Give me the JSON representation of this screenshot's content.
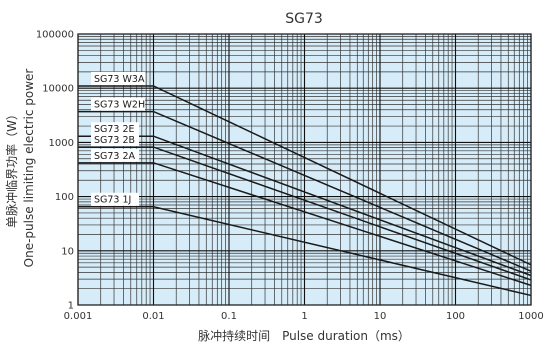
{
  "chart_data": {
    "type": "line",
    "title": "SG73",
    "xlabel": "脉冲持续时间　Pulse duration（ms）",
    "ylabel_line1": "单脉冲临界功率（W）",
    "ylabel_line2": "One-pulse limiting electric power",
    "x_scale": "log",
    "y_scale": "log",
    "xlim": [
      0.001,
      1000
    ],
    "ylim": [
      1,
      100000
    ],
    "x_ticks": [
      "0.001",
      "0.01",
      "0.1",
      "1",
      "10",
      "100",
      "1000"
    ],
    "y_ticks": [
      "1",
      "10",
      "100",
      "1000",
      "10000",
      "100000"
    ],
    "grid": true,
    "plot_background": "#d6ecf8",
    "line_color": "#1a1a1a",
    "series": [
      {
        "name": "SG73 W3A",
        "x": [
          0.001,
          0.01,
          1000
        ],
        "y": [
          11000,
          11000,
          5.5
        ]
      },
      {
        "name": "SG73 W2H",
        "x": [
          0.001,
          0.01,
          1000
        ],
        "y": [
          3700,
          3700,
          4.2
        ]
      },
      {
        "name": "SG73 2E",
        "x": [
          0.001,
          0.01,
          1000
        ],
        "y": [
          1300,
          1300,
          3.5
        ]
      },
      {
        "name": "SG73 2B",
        "x": [
          0.001,
          0.01,
          1000
        ],
        "y": [
          820,
          820,
          2.9
        ]
      },
      {
        "name": "SG73 2A",
        "x": [
          0.001,
          0.01,
          1000
        ],
        "y": [
          420,
          420,
          2.3
        ]
      },
      {
        "name": "SG73 1J",
        "x": [
          0.001,
          0.01,
          1000
        ],
        "y": [
          65,
          65,
          1.5
        ]
      }
    ]
  }
}
